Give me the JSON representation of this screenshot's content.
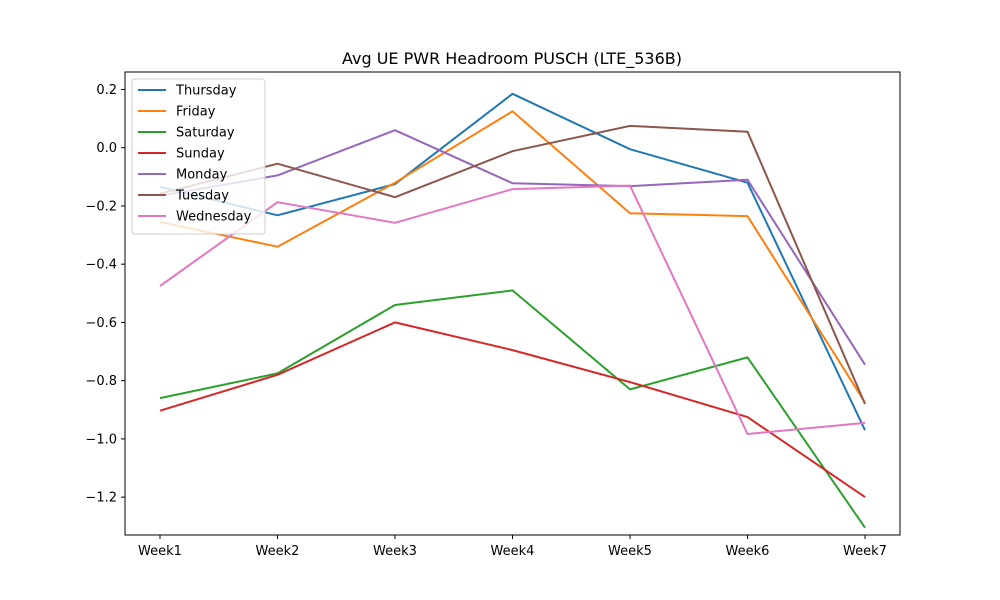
{
  "chart_data": {
    "type": "line",
    "title": "Avg UE PWR Headroom PUSCH (LTE_536B)",
    "xlabel": "",
    "ylabel": "",
    "categories": [
      "Week1",
      "Week2",
      "Week3",
      "Week4",
      "Week5",
      "Week6",
      "Week7"
    ],
    "ylim": [
      -1.33,
      0.26
    ],
    "yticks": [
      0.2,
      0.0,
      -0.2,
      -0.4,
      -0.6,
      -0.8,
      -1.0,
      -1.2
    ],
    "ytick_labels": [
      "0.2",
      "0.0",
      "−0.2",
      "−0.4",
      "−0.6",
      "−0.8",
      "−1.0",
      "−1.2"
    ],
    "grid": false,
    "legend_position": "upper-left",
    "series": [
      {
        "name": "Thursday",
        "color": "#1f77b4",
        "values": [
          -0.135,
          -0.232,
          -0.125,
          0.185,
          -0.005,
          -0.12,
          -0.97
        ]
      },
      {
        "name": "Friday",
        "color": "#ff7f0e",
        "values": [
          -0.255,
          -0.34,
          -0.12,
          0.125,
          -0.225,
          -0.235,
          -0.875
        ]
      },
      {
        "name": "Saturday",
        "color": "#2ca02c",
        "values": [
          -0.86,
          -0.775,
          -0.54,
          -0.49,
          -0.83,
          -0.72,
          -1.305
        ]
      },
      {
        "name": "Sunday",
        "color": "#d62728",
        "values": [
          -0.903,
          -0.78,
          -0.6,
          -0.695,
          -0.805,
          -0.925,
          -1.2
        ]
      },
      {
        "name": "Monday",
        "color": "#9467bd",
        "values": [
          -0.165,
          -0.095,
          0.06,
          -0.122,
          -0.132,
          -0.11,
          -0.745
        ]
      },
      {
        "name": "Tuesday",
        "color": "#8c564b",
        "values": [
          -0.158,
          -0.055,
          -0.17,
          -0.012,
          0.075,
          0.055,
          -0.88
        ]
      },
      {
        "name": "Wednesday",
        "color": "#e377c2",
        "values": [
          -0.475,
          -0.187,
          -0.258,
          -0.142,
          -0.13,
          -0.983,
          -0.945
        ]
      }
    ]
  }
}
